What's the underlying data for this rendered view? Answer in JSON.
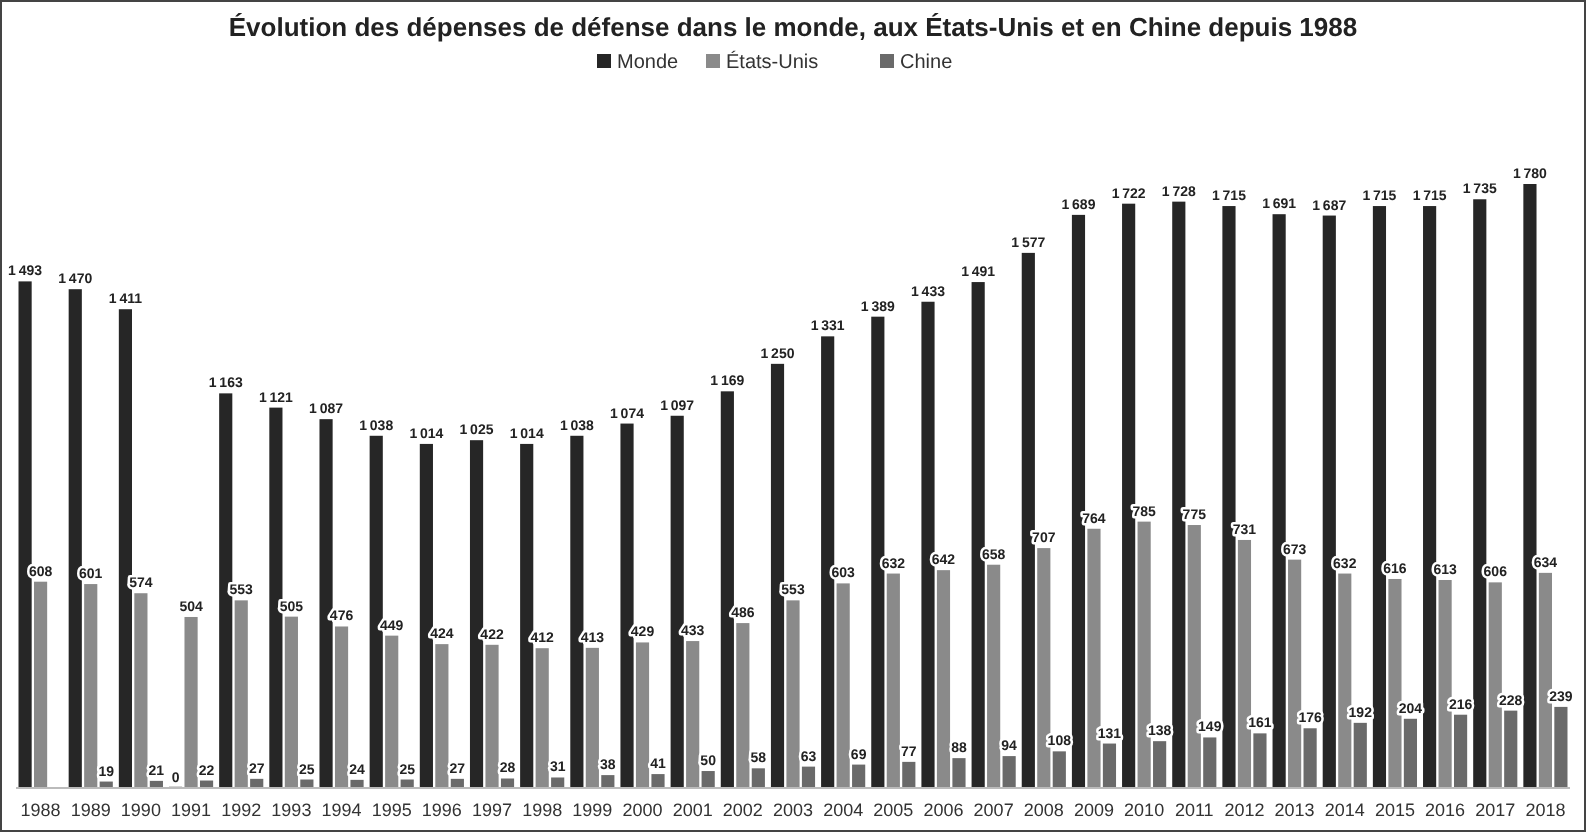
{
  "chart_data": {
    "type": "bar",
    "title": "Évolution des dépenses de défense dans le monde, aux États-Unis et en Chine depuis 1988",
    "categories": [
      "1988",
      "1989",
      "1990",
      "1991",
      "1992",
      "1993",
      "1994",
      "1995",
      "1996",
      "1997",
      "1998",
      "1999",
      "2000",
      "2001",
      "2002",
      "2003",
      "2004",
      "2005",
      "2006",
      "2007",
      "2008",
      "2009",
      "2010",
      "2011",
      "2012",
      "2013",
      "2014",
      "2015",
      "2016",
      "2017",
      "2018"
    ],
    "series": [
      {
        "name": "Monde",
        "color": "#262626",
        "values": [
          1493,
          1470,
          1411,
          0,
          1163,
          1121,
          1087,
          1038,
          1014,
          1025,
          1014,
          1038,
          1074,
          1097,
          1169,
          1250,
          1331,
          1389,
          1433,
          1491,
          1577,
          1689,
          1722,
          1728,
          1715,
          1691,
          1687,
          1715,
          1715,
          1735,
          1780
        ]
      },
      {
        "name": "États-Unis",
        "color": "#8a8a8a",
        "values": [
          608,
          601,
          574,
          504,
          553,
          505,
          476,
          449,
          424,
          422,
          412,
          413,
          429,
          433,
          486,
          553,
          603,
          632,
          642,
          658,
          707,
          764,
          785,
          775,
          731,
          673,
          632,
          616,
          613,
          606,
          634
        ]
      },
      {
        "name": "Chine",
        "color": "#6a6a6a",
        "values": [
          null,
          19,
          21,
          22,
          27,
          25,
          24,
          25,
          27,
          28,
          31,
          38,
          41,
          50,
          58,
          63,
          69,
          77,
          88,
          94,
          108,
          131,
          138,
          149,
          161,
          176,
          192,
          204,
          216,
          228,
          239
        ]
      }
    ],
    "data_labels": true,
    "legend": "top"
  }
}
